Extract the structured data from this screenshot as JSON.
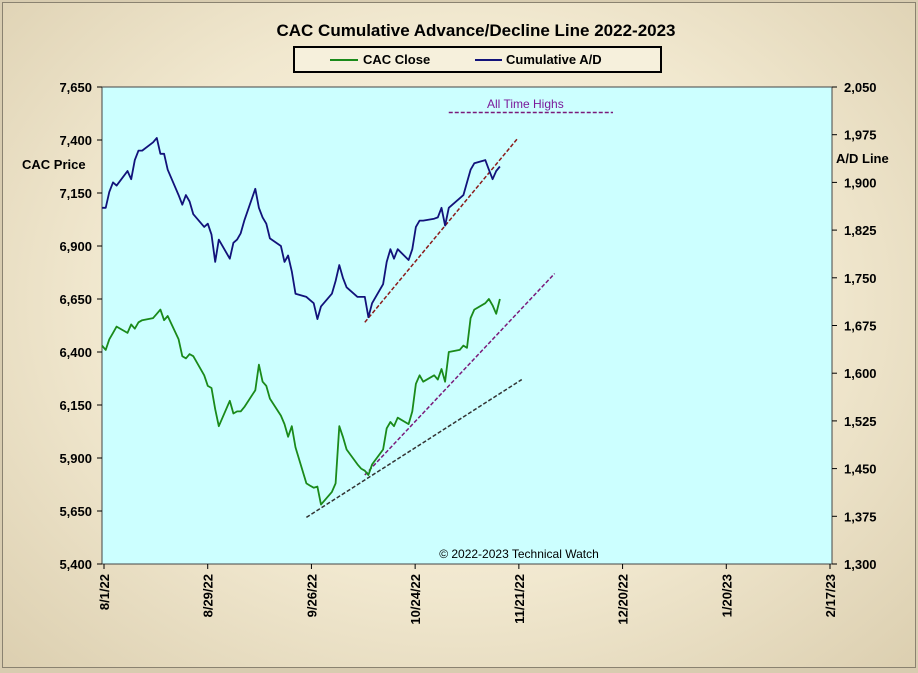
{
  "chart_data": {
    "type": "line",
    "title": "CAC Cumulative  Advance/Decline  Line  2022-2023",
    "left_axis_label": "CAC Price",
    "right_axis_label": "A/D Line",
    "legend": {
      "placement": "top-center",
      "entries": [
        "CAC Close",
        "Cumulative A/D"
      ]
    },
    "annotation": "All Time Highs",
    "copyright": "© 2022-2023  Technical  Watch",
    "x_ticks": [
      "8/1/22",
      "8/29/22",
      "9/26/22",
      "10/24/22",
      "11/21/22",
      "12/20/22",
      "1/20/23",
      "2/17/23"
    ],
    "left_ticks": [
      "5,400",
      "5,650",
      "5,900",
      "6,150",
      "6,400",
      "6,650",
      "6,900",
      "7,150",
      "7,400",
      "7,650"
    ],
    "right_ticks": [
      "1,300",
      "1,375",
      "1,450",
      "1,525",
      "1,600",
      "1,675",
      "1,750",
      "1,825",
      "1,900",
      "1,975",
      "2,050"
    ],
    "x_range": [
      "2022-08-01",
      "2023-02-17"
    ],
    "ylim_left": [
      5400,
      7650
    ],
    "ylim_right": [
      1300,
      2050
    ],
    "grid": false,
    "series": [
      {
        "name": "CAC Close",
        "axis": "left",
        "color": "#1a8a1a",
        "points": [
          [
            "2022-08-01",
            6430
          ],
          [
            "2022-08-02",
            6410
          ],
          [
            "2022-08-03",
            6460
          ],
          [
            "2022-08-04",
            6490
          ],
          [
            "2022-08-05",
            6520
          ],
          [
            "2022-08-08",
            6490
          ],
          [
            "2022-08-09",
            6530
          ],
          [
            "2022-08-10",
            6510
          ],
          [
            "2022-08-11",
            6540
          ],
          [
            "2022-08-12",
            6550
          ],
          [
            "2022-08-15",
            6560
          ],
          [
            "2022-08-16",
            6580
          ],
          [
            "2022-08-17",
            6600
          ],
          [
            "2022-08-18",
            6550
          ],
          [
            "2022-08-19",
            6570
          ],
          [
            "2022-08-22",
            6460
          ],
          [
            "2022-08-23",
            6380
          ],
          [
            "2022-08-24",
            6370
          ],
          [
            "2022-08-25",
            6390
          ],
          [
            "2022-08-26",
            6380
          ],
          [
            "2022-08-29",
            6290
          ],
          [
            "2022-08-30",
            6240
          ],
          [
            "2022-08-31",
            6230
          ],
          [
            "2022-09-01",
            6130
          ],
          [
            "2022-09-02",
            6050
          ],
          [
            "2022-09-05",
            6170
          ],
          [
            "2022-09-06",
            6110
          ],
          [
            "2022-09-07",
            6120
          ],
          [
            "2022-09-08",
            6120
          ],
          [
            "2022-09-09",
            6140
          ],
          [
            "2022-09-12",
            6220
          ],
          [
            "2022-09-13",
            6340
          ],
          [
            "2022-09-14",
            6260
          ],
          [
            "2022-09-15",
            6240
          ],
          [
            "2022-09-16",
            6180
          ],
          [
            "2022-09-19",
            6100
          ],
          [
            "2022-09-20",
            6060
          ],
          [
            "2022-09-21",
            6000
          ],
          [
            "2022-09-22",
            6050
          ],
          [
            "2022-09-23",
            5950
          ],
          [
            "2022-09-26",
            5780
          ],
          [
            "2022-09-27",
            5770
          ],
          [
            "2022-09-28",
            5760
          ],
          [
            "2022-09-29",
            5765
          ],
          [
            "2022-09-30",
            5680
          ],
          [
            "2022-10-03",
            5740
          ],
          [
            "2022-10-04",
            5780
          ],
          [
            "2022-10-05",
            6050
          ],
          [
            "2022-10-06",
            6000
          ],
          [
            "2022-10-07",
            5940
          ],
          [
            "2022-10-10",
            5870
          ],
          [
            "2022-10-11",
            5850
          ],
          [
            "2022-10-12",
            5840
          ],
          [
            "2022-10-13",
            5820
          ],
          [
            "2022-10-14",
            5870
          ],
          [
            "2022-10-17",
            5940
          ],
          [
            "2022-10-18",
            6040
          ],
          [
            "2022-10-19",
            6070
          ],
          [
            "2022-10-20",
            6050
          ],
          [
            "2022-10-21",
            6090
          ],
          [
            "2022-10-24",
            6060
          ],
          [
            "2022-10-25",
            6120
          ],
          [
            "2022-10-26",
            6250
          ],
          [
            "2022-10-27",
            6290
          ],
          [
            "2022-10-28",
            6260
          ],
          [
            "2022-10-31",
            6290
          ],
          [
            "2022-11-01",
            6270
          ],
          [
            "2022-11-02",
            6320
          ],
          [
            "2022-11-03",
            6260
          ],
          [
            "2022-11-04",
            6400
          ],
          [
            "2022-11-07",
            6410
          ],
          [
            "2022-11-08",
            6430
          ],
          [
            "2022-11-09",
            6420
          ],
          [
            "2022-11-10",
            6560
          ],
          [
            "2022-11-11",
            6600
          ],
          [
            "2022-11-14",
            6630
          ],
          [
            "2022-11-15",
            6650
          ],
          [
            "2022-11-16",
            6620
          ],
          [
            "2022-11-17",
            6580
          ],
          [
            "2022-11-18",
            6650
          ]
        ]
      },
      {
        "name": "Cumulative A/D",
        "axis": "right",
        "color": "#12127a",
        "points": [
          [
            "2022-08-01",
            1860
          ],
          [
            "2022-08-02",
            1860
          ],
          [
            "2022-08-03",
            1885
          ],
          [
            "2022-08-04",
            1900
          ],
          [
            "2022-08-05",
            1895
          ],
          [
            "2022-08-08",
            1918
          ],
          [
            "2022-08-09",
            1905
          ],
          [
            "2022-08-10",
            1935
          ],
          [
            "2022-08-11",
            1950
          ],
          [
            "2022-08-12",
            1950
          ],
          [
            "2022-08-15",
            1963
          ],
          [
            "2022-08-16",
            1970
          ],
          [
            "2022-08-17",
            1945
          ],
          [
            "2022-08-18",
            1945
          ],
          [
            "2022-08-19",
            1920
          ],
          [
            "2022-08-22",
            1880
          ],
          [
            "2022-08-23",
            1865
          ],
          [
            "2022-08-24",
            1880
          ],
          [
            "2022-08-25",
            1870
          ],
          [
            "2022-08-26",
            1850
          ],
          [
            "2022-08-29",
            1830
          ],
          [
            "2022-08-30",
            1835
          ],
          [
            "2022-08-31",
            1818
          ],
          [
            "2022-09-01",
            1775
          ],
          [
            "2022-09-02",
            1810
          ],
          [
            "2022-09-05",
            1780
          ],
          [
            "2022-09-06",
            1805
          ],
          [
            "2022-09-07",
            1810
          ],
          [
            "2022-09-08",
            1820
          ],
          [
            "2022-09-09",
            1840
          ],
          [
            "2022-09-12",
            1890
          ],
          [
            "2022-09-13",
            1860
          ],
          [
            "2022-09-14",
            1845
          ],
          [
            "2022-09-15",
            1835
          ],
          [
            "2022-09-16",
            1812
          ],
          [
            "2022-09-19",
            1800
          ],
          [
            "2022-09-20",
            1775
          ],
          [
            "2022-09-21",
            1785
          ],
          [
            "2022-09-22",
            1760
          ],
          [
            "2022-09-23",
            1725
          ],
          [
            "2022-09-26",
            1720
          ],
          [
            "2022-09-27",
            1715
          ],
          [
            "2022-09-28",
            1710
          ],
          [
            "2022-09-29",
            1685
          ],
          [
            "2022-09-30",
            1705
          ],
          [
            "2022-10-03",
            1725
          ],
          [
            "2022-10-04",
            1745
          ],
          [
            "2022-10-05",
            1770
          ],
          [
            "2022-10-06",
            1750
          ],
          [
            "2022-10-07",
            1735
          ],
          [
            "2022-10-10",
            1720
          ],
          [
            "2022-10-11",
            1720
          ],
          [
            "2022-10-12",
            1720
          ],
          [
            "2022-10-13",
            1688
          ],
          [
            "2022-10-14",
            1710
          ],
          [
            "2022-10-17",
            1740
          ],
          [
            "2022-10-18",
            1775
          ],
          [
            "2022-10-19",
            1795
          ],
          [
            "2022-10-20",
            1780
          ],
          [
            "2022-10-21",
            1795
          ],
          [
            "2022-10-24",
            1778
          ],
          [
            "2022-10-25",
            1795
          ],
          [
            "2022-10-26",
            1830
          ],
          [
            "2022-10-27",
            1840
          ],
          [
            "2022-10-28",
            1840
          ],
          [
            "2022-10-31",
            1843
          ],
          [
            "2022-11-01",
            1845
          ],
          [
            "2022-11-02",
            1860
          ],
          [
            "2022-11-03",
            1832
          ],
          [
            "2022-11-04",
            1860
          ],
          [
            "2022-11-07",
            1875
          ],
          [
            "2022-11-08",
            1880
          ],
          [
            "2022-11-09",
            1900
          ],
          [
            "2022-11-10",
            1920
          ],
          [
            "2022-11-11",
            1930
          ],
          [
            "2022-11-14",
            1935
          ],
          [
            "2022-11-15",
            1920
          ],
          [
            "2022-11-16",
            1905
          ],
          [
            "2022-11-17",
            1918
          ],
          [
            "2022-11-18",
            1925
          ]
        ]
      }
    ],
    "trendlines": [
      {
        "axis": "right",
        "color": "#8b1a1a",
        "points": [
          [
            "2022-10-12",
            1680
          ],
          [
            "2022-11-23",
            1970
          ]
        ]
      },
      {
        "axis": "left",
        "color": "#7a1a7a",
        "points": [
          [
            "2022-10-12",
            5820
          ],
          [
            "2022-12-03",
            6770
          ]
        ]
      },
      {
        "axis": "left",
        "color": "#333333",
        "points": [
          [
            "2022-09-26",
            5620
          ],
          [
            "2022-11-24",
            6270
          ]
        ]
      },
      {
        "axis": "right",
        "color": "#7a1a7a",
        "points": [
          [
            "2022-11-04",
            2010
          ],
          [
            "2022-12-19",
            2010
          ]
        ]
      }
    ]
  }
}
